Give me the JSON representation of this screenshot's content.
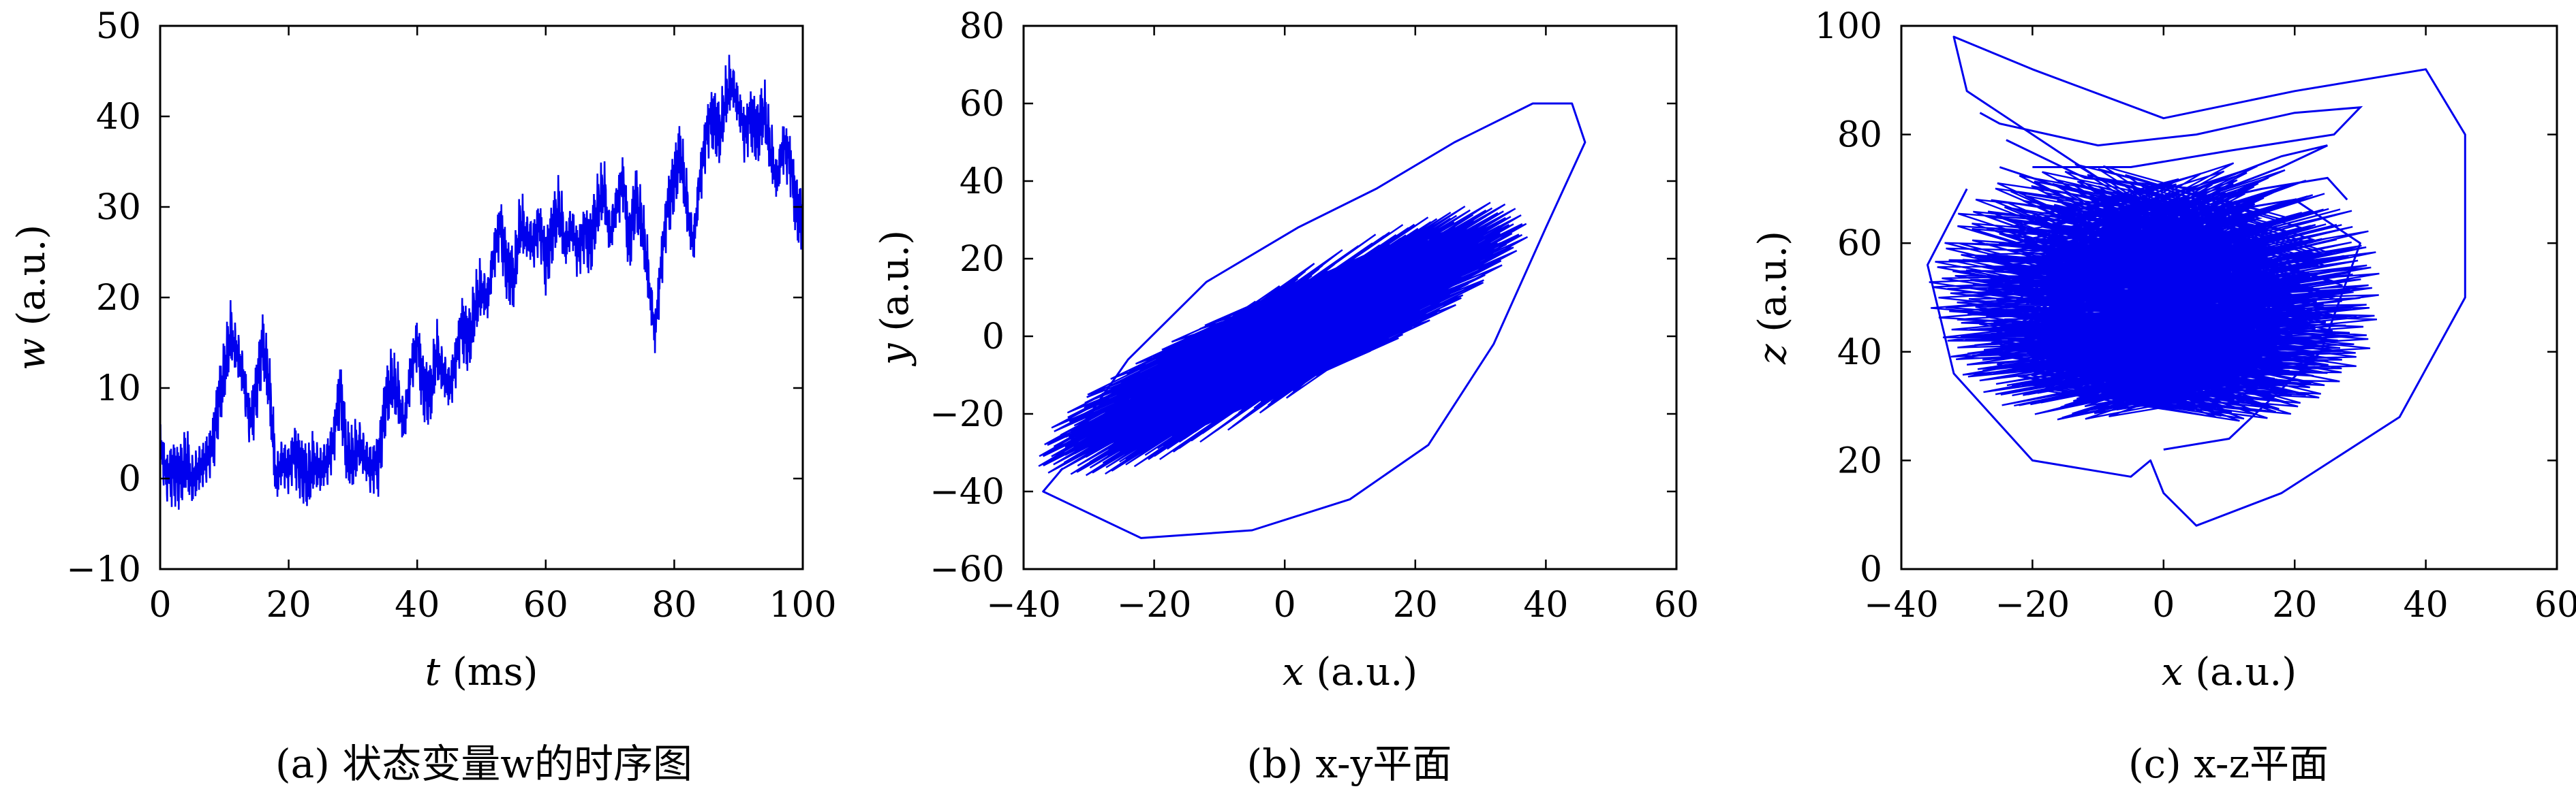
{
  "chart_data": [
    {
      "id": "a",
      "type": "line",
      "caption": "(a) 状态变量w的时序图",
      "xlabel": "t (ms)",
      "ylabel": "w (a.u.)",
      "xlim": [
        0,
        100
      ],
      "ylim": [
        -10,
        50
      ],
      "xticks": [
        0,
        20,
        40,
        60,
        80,
        100
      ],
      "yticks": [
        -10,
        0,
        10,
        20,
        30,
        40,
        50
      ],
      "line_color": "#0000ee",
      "series": [
        {
          "x": [
            0,
            1,
            2,
            3,
            4,
            5,
            6,
            7,
            8,
            9,
            10,
            11,
            12,
            13,
            14,
            15,
            16,
            17,
            18,
            19,
            20,
            21,
            22,
            23,
            24,
            25,
            26,
            27,
            28,
            29,
            30,
            31,
            32,
            33,
            34,
            35,
            36,
            37,
            38,
            39,
            40,
            41,
            42,
            43,
            44,
            45,
            46,
            47,
            48,
            49,
            50,
            51,
            52,
            53,
            54,
            55,
            56,
            57,
            58,
            59,
            60,
            61,
            62,
            63,
            64,
            65,
            66,
            67,
            68,
            69,
            70,
            71,
            72,
            73,
            74,
            75,
            76,
            77,
            78,
            79,
            80,
            81,
            82,
            83,
            84,
            85,
            86,
            87,
            88,
            89,
            90,
            91,
            92,
            93,
            94,
            95,
            96,
            97,
            98,
            99,
            100
          ],
          "y": [
            4,
            0,
            1,
            0,
            2,
            0,
            1,
            2,
            3,
            8,
            12,
            16,
            14,
            11,
            6,
            10,
            15,
            10,
            0,
            2,
            1,
            3,
            1,
            0,
            2,
            1,
            2,
            4,
            10,
            3,
            2,
            4,
            2,
            1,
            2,
            8,
            11,
            9,
            6,
            12,
            15,
            10,
            9,
            14,
            12,
            10,
            13,
            17,
            15,
            19,
            21,
            20,
            25,
            28,
            23,
            22,
            28,
            27,
            26,
            28,
            24,
            27,
            30,
            26,
            28,
            25,
            27,
            26,
            30,
            32,
            27,
            30,
            33,
            26,
            31,
            28,
            22,
            16,
            24,
            30,
            33,
            36,
            30,
            26,
            33,
            38,
            40,
            38,
            42,
            44,
            41,
            38,
            40,
            38,
            41,
            36,
            33,
            37,
            35,
            30,
            28
          ]
        }
      ]
    },
    {
      "id": "b",
      "type": "line",
      "caption": "(b) x-y平面",
      "xlabel": "x (a.u.)",
      "ylabel": "y (a.u.)",
      "xlim": [
        -40,
        60
      ],
      "ylim": [
        -60,
        80
      ],
      "xticks": [
        -40,
        -20,
        0,
        20,
        40,
        60
      ],
      "yticks": [
        -60,
        -40,
        -20,
        0,
        20,
        40,
        60,
        80
      ],
      "line_color": "#0000ee",
      "outer_orbit": [
        [
          -34,
          -34
        ],
        [
          -37,
          -40
        ],
        [
          -32,
          -44
        ],
        [
          -22,
          -52
        ],
        [
          -5,
          -50
        ],
        [
          10,
          -42
        ],
        [
          22,
          -28
        ],
        [
          32,
          -2
        ],
        [
          40,
          28
        ],
        [
          46,
          50
        ],
        [
          44,
          60
        ],
        [
          38,
          60
        ],
        [
          26,
          50
        ],
        [
          14,
          38
        ],
        [
          2,
          28
        ],
        [
          -12,
          14
        ],
        [
          -24,
          -6
        ],
        [
          -34,
          -30
        ]
      ]
    },
    {
      "id": "c",
      "type": "line",
      "caption": "(c) x-z平面",
      "xlabel": "x (a.u.)",
      "ylabel": "z (a.u.)",
      "xlim": [
        -40,
        60
      ],
      "ylim": [
        0,
        100
      ],
      "xticks": [
        -40,
        -20,
        0,
        20,
        40,
        60
      ],
      "yticks": [
        0,
        20,
        40,
        60,
        80,
        100
      ],
      "line_color": "#0000ee",
      "outer_orbit": [
        [
          -30,
          70
        ],
        [
          -36,
          56
        ],
        [
          -32,
          36
        ],
        [
          -20,
          20
        ],
        [
          -5,
          17
        ],
        [
          -2,
          20
        ],
        [
          0,
          14
        ],
        [
          5,
          8
        ],
        [
          18,
          14
        ],
        [
          36,
          28
        ],
        [
          46,
          50
        ],
        [
          46,
          80
        ],
        [
          40,
          92
        ],
        [
          20,
          88
        ],
        [
          0,
          83
        ],
        [
          -20,
          92
        ],
        [
          -32,
          98
        ],
        [
          -30,
          88
        ],
        [
          -20,
          80
        ],
        [
          -10,
          72
        ],
        [
          0,
          70
        ],
        [
          10,
          66
        ],
        [
          20,
          68
        ],
        [
          30,
          60
        ],
        [
          24,
          40
        ],
        [
          10,
          24
        ],
        [
          0,
          22
        ]
      ],
      "top_loops": [
        [
          [
            -28,
            84
          ],
          [
            -25,
            82
          ],
          [
            -10,
            78
          ],
          [
            5,
            80
          ],
          [
            20,
            84
          ],
          [
            30,
            85
          ],
          [
            26,
            80
          ],
          [
            10,
            77
          ],
          [
            -5,
            74
          ],
          [
            -20,
            74
          ]
        ],
        [
          [
            -24,
            79
          ],
          [
            -12,
            72
          ],
          [
            5,
            70
          ],
          [
            18,
            76
          ],
          [
            25,
            78
          ],
          [
            18,
            74
          ],
          [
            5,
            68
          ]
        ],
        [
          [
            -25,
            74
          ],
          [
            -15,
            70
          ],
          [
            0,
            66
          ],
          [
            15,
            70
          ],
          [
            25,
            72
          ],
          [
            28,
            68
          ]
        ]
      ]
    }
  ]
}
